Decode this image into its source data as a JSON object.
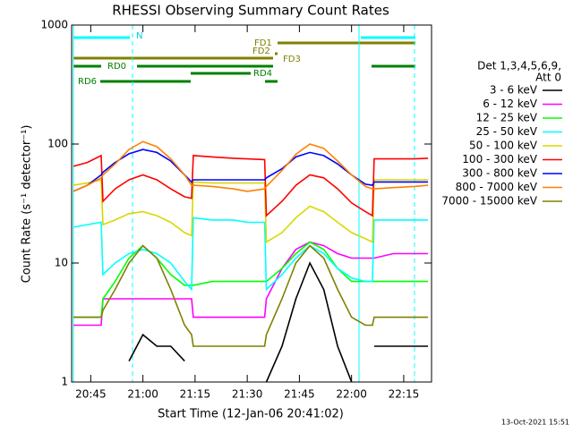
{
  "chart_data": {
    "type": "line",
    "title": "RHESSI Observing Summary Count Rates",
    "x_label": "Start Time (12-Jan-06 20:41:02)",
    "y_label": "Count Rate (s⁻¹ detector⁻¹)",
    "footer": "13-Oct-2021 15:51",
    "legend_header": [
      "Det 1,3,4,5,6,9,",
      "Att 0"
    ],
    "annotations": {
      "n": "N",
      "fd1": "FD1",
      "fd2": "FD2",
      "fd3": "FD3",
      "rd0": "RD0",
      "rd4": "RD4",
      "rd6": "RD6"
    },
    "log_y": true,
    "xlim": [
      39.5,
      143
    ],
    "xticks": [
      {
        "value": 45,
        "label": "20:45"
      },
      {
        "value": 60,
        "label": "21:00"
      },
      {
        "value": 75,
        "label": "21:15"
      },
      {
        "value": 90,
        "label": "21:30"
      },
      {
        "value": 105,
        "label": "21:45"
      },
      {
        "value": 120,
        "label": "22:00"
      },
      {
        "value": 135,
        "label": "22:15"
      }
    ],
    "ylim": [
      1,
      1000
    ],
    "yticks": [
      1,
      10,
      100,
      1000
    ],
    "x": [
      40,
      44,
      48,
      48.5,
      52,
      56,
      60,
      64,
      68,
      72,
      74,
      74.5,
      80,
      86,
      90,
      95,
      95.5,
      100,
      104,
      108,
      112,
      116,
      120,
      124,
      126,
      126.5,
      132,
      138,
      142
    ],
    "series": [
      {
        "name": "3 - 6 keV",
        "color": "#000000",
        "values": [
          null,
          null,
          null,
          null,
          null,
          1.5,
          2.5,
          2,
          2,
          1.5,
          null,
          null,
          null,
          null,
          null,
          null,
          1,
          2,
          5,
          10,
          6,
          2,
          1,
          null,
          null,
          2,
          2,
          2,
          2
        ]
      },
      {
        "name": "6 - 12 keV",
        "color": "#ff00ff",
        "values": [
          3,
          3,
          3,
          5,
          5,
          5,
          5,
          5,
          5,
          5,
          5,
          3.5,
          3.5,
          3.5,
          3.5,
          3.5,
          5,
          9,
          13,
          15,
          14,
          12,
          11,
          11,
          11,
          11,
          12,
          12,
          12
        ]
      },
      {
        "name": "12 - 25 keV",
        "color": "#00ff00",
        "values": [
          3.5,
          3.5,
          3.5,
          5,
          7,
          11,
          14,
          11,
          8,
          6.5,
          6.5,
          6.5,
          7,
          7,
          7,
          7,
          7,
          9,
          12,
          15,
          13,
          9,
          7,
          7,
          7,
          7,
          7,
          7,
          7
        ]
      },
      {
        "name": "25 - 50 keV",
        "color": "#00ffff",
        "values": [
          20,
          21,
          22,
          8,
          10,
          12,
          13,
          12,
          10,
          7,
          6,
          24,
          23,
          23,
          22,
          22,
          6,
          8,
          11,
          14,
          12,
          9,
          7.5,
          7,
          7,
          23,
          23,
          23,
          23
        ]
      },
      {
        "name": "50 - 100 keV",
        "color": "#d8d800",
        "values": [
          45,
          47,
          50,
          21,
          23,
          26,
          27,
          25,
          22,
          18,
          17,
          48,
          47,
          47,
          47,
          47,
          15,
          18,
          24,
          30,
          27,
          22,
          18,
          16,
          15,
          50,
          50,
          50,
          50
        ]
      },
      {
        "name": "100 - 300 keV",
        "color": "#ff0000",
        "values": [
          65,
          70,
          80,
          33,
          42,
          50,
          55,
          50,
          42,
          36,
          35,
          80,
          78,
          76,
          75,
          74,
          25,
          33,
          45,
          55,
          52,
          42,
          32,
          27,
          25,
          75,
          75,
          75,
          76
        ]
      },
      {
        "name": "300 - 800 keV",
        "color": "#0000ff",
        "values": [
          40,
          45,
          55,
          58,
          70,
          83,
          90,
          85,
          72,
          55,
          48,
          50,
          50,
          50,
          50,
          50,
          52,
          62,
          78,
          85,
          80,
          68,
          55,
          46,
          45,
          48,
          48,
          48,
          48
        ]
      },
      {
        "name": "800 - 7000 keV",
        "color": "#ff8000",
        "values": [
          40,
          45,
          52,
          55,
          68,
          90,
          105,
          95,
          75,
          55,
          45,
          45,
          44,
          42,
          40,
          42,
          44,
          60,
          82,
          100,
          92,
          72,
          55,
          44,
          42,
          42,
          43,
          44,
          45
        ]
      },
      {
        "name": "7000 - 15000 keV",
        "color": "#808000",
        "values": [
          3.5,
          3.5,
          3.5,
          4,
          6,
          10,
          14,
          11,
          6,
          3,
          2.5,
          2,
          2,
          2,
          2,
          2,
          2.5,
          5,
          10,
          14,
          11,
          6,
          3.5,
          3,
          3,
          3.5,
          3.5,
          3.5,
          3.5
        ]
      }
    ]
  }
}
